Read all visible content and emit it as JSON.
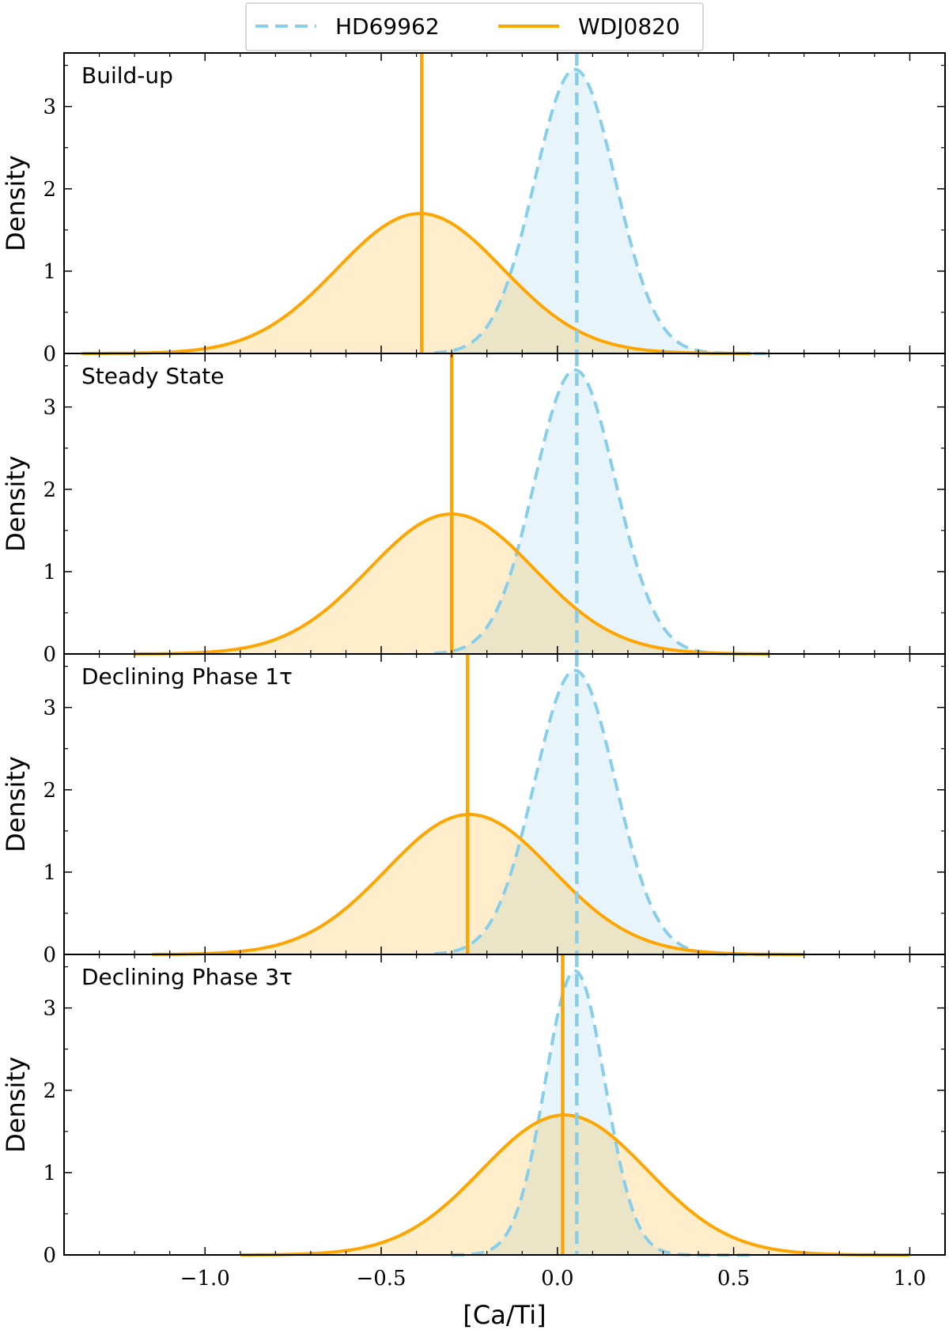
{
  "legend": [
    {
      "name": "HD69962",
      "color": "#87CEEB",
      "style": "dashed"
    },
    {
      "name": "WDJ0820",
      "color": "#FFA500",
      "style": "solid"
    }
  ],
  "chart_data": {
    "type": "area",
    "xlabel": "[Ca/Ti]",
    "ylabel": "Density",
    "xlim": [
      -1.4,
      1.1
    ],
    "ylim": [
      0,
      3.65
    ],
    "x_ticks": [
      -1.0,
      -0.5,
      0.0,
      0.5,
      1.0
    ],
    "x_tick_labels": [
      "−1.0",
      "−0.5",
      "0.0",
      "0.5",
      "1.0"
    ],
    "y_ticks": [
      0,
      1,
      2,
      3
    ],
    "y_tick_labels": [
      "0",
      "1",
      "2",
      "3"
    ],
    "legend_position": "top-center",
    "panels": [
      {
        "label": "Build-up",
        "series": [
          {
            "name": "HD69962",
            "center": 0.05,
            "sigma": 0.115,
            "peak": 3.45,
            "range": [
              -0.35,
              0.6
            ],
            "marker": 0.055
          },
          {
            "name": "WDJ0820",
            "center": -0.39,
            "sigma": 0.235,
            "peak": 1.7,
            "range": [
              -1.35,
              0.55
            ],
            "marker": -0.385
          }
        ]
      },
      {
        "label": "Steady State",
        "series": [
          {
            "name": "HD69962",
            "center": 0.05,
            "sigma": 0.115,
            "peak": 3.45,
            "range": [
              -0.35,
              0.6
            ],
            "marker": 0.055
          },
          {
            "name": "WDJ0820",
            "center": -0.3,
            "sigma": 0.235,
            "peak": 1.7,
            "range": [
              -1.2,
              0.6
            ],
            "marker": -0.3
          }
        ]
      },
      {
        "label": "Declining Phase 1τ",
        "series": [
          {
            "name": "HD69962",
            "center": 0.05,
            "sigma": 0.115,
            "peak": 3.45,
            "range": [
              -0.35,
              0.6
            ],
            "marker": 0.055
          },
          {
            "name": "WDJ0820",
            "center": -0.25,
            "sigma": 0.235,
            "peak": 1.7,
            "range": [
              -1.15,
              0.7
            ],
            "marker": -0.255
          }
        ]
      },
      {
        "label": "Declining Phase 3τ",
        "series": [
          {
            "name": "HD69962",
            "center": 0.05,
            "sigma": 0.085,
            "peak": 3.45,
            "range": [
              -0.3,
              0.55
            ],
            "marker": 0.055
          },
          {
            "name": "WDJ0820",
            "center": 0.02,
            "sigma": 0.235,
            "peak": 1.7,
            "range": [
              -0.9,
              1.0
            ],
            "marker": 0.015
          }
        ]
      }
    ]
  }
}
